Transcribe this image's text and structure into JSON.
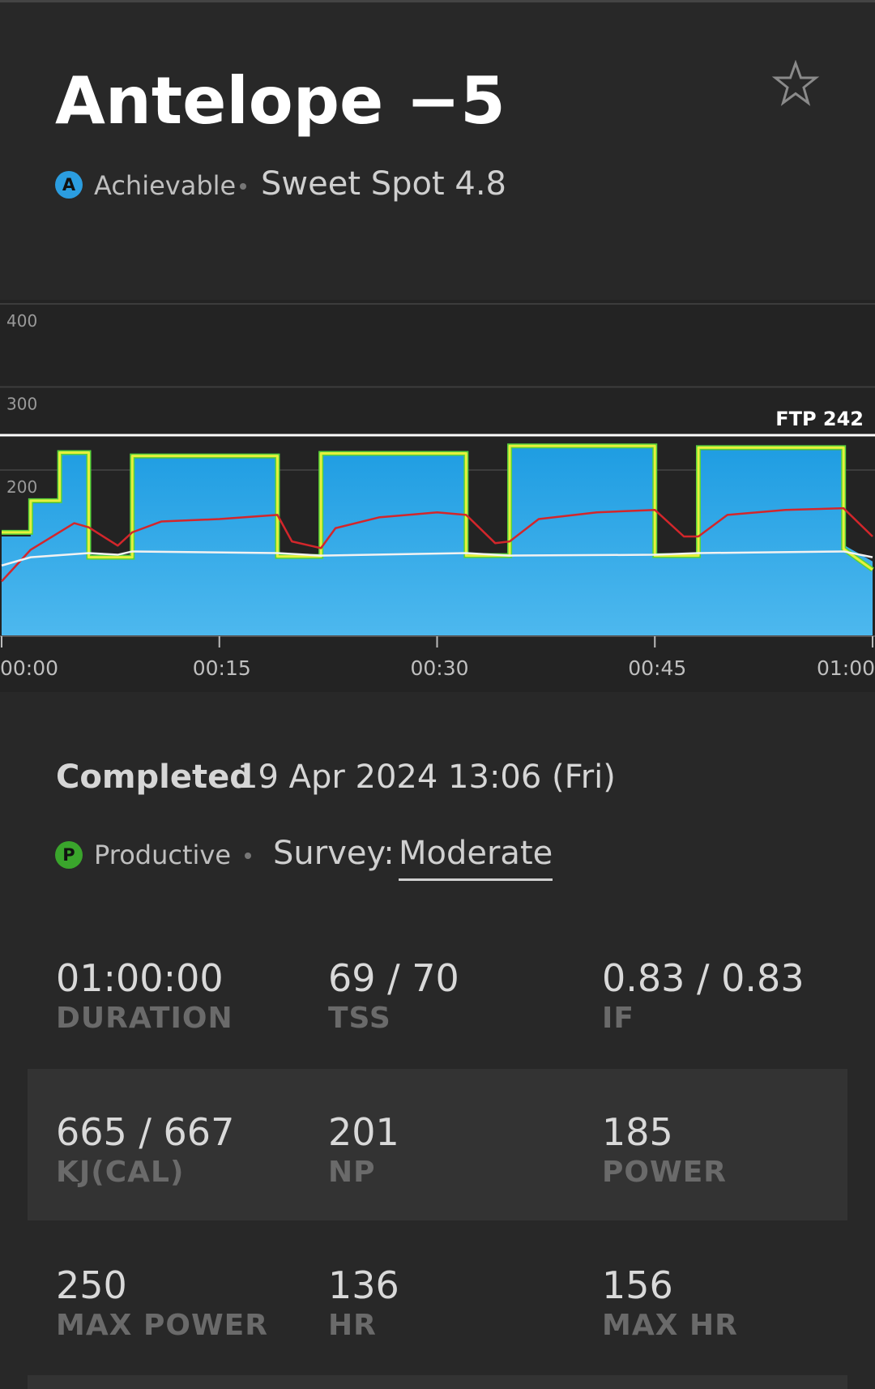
{
  "header": {
    "title": "Antelope −5",
    "badge": "A",
    "level": "Achievable",
    "zone": "Sweet Spot 4.8"
  },
  "chart_data": {
    "type": "line",
    "xlim": [
      0,
      60
    ],
    "xticks": [
      {
        "value": 0,
        "label": "00:00"
      },
      {
        "value": 15,
        "label": "00:15"
      },
      {
        "value": 30,
        "label": "00:30"
      },
      {
        "value": 45,
        "label": "00:45"
      },
      {
        "value": 60,
        "label": "01:00"
      }
    ],
    "ylim": [
      0,
      400
    ],
    "yticks": [
      200,
      300,
      400
    ],
    "grid": true,
    "ftp": {
      "value": 242,
      "label": "FTP 242"
    },
    "series": [
      {
        "kind": "area",
        "color": "#1f9de2",
        "x": [
          0,
          2,
          2,
          4,
          4,
          6,
          6,
          9,
          9,
          19,
          19,
          22,
          22,
          32,
          32,
          35,
          35,
          45,
          45,
          48,
          48,
          58,
          58,
          60
        ],
        "values": [
          120,
          120,
          160,
          160,
          218,
          218,
          98,
          98,
          214,
          214,
          98,
          98,
          218,
          218,
          98,
          98,
          227,
          227,
          98,
          98,
          224,
          224,
          110,
          90
        ]
      },
      {
        "kind": "line",
        "color": "#e6f03c",
        "x": [
          0,
          2,
          2,
          4,
          4,
          6,
          6,
          9,
          9,
          19,
          19,
          22,
          22,
          32,
          32,
          35,
          35,
          45,
          45,
          48,
          48,
          58,
          58,
          60
        ],
        "values": [
          125,
          125,
          163,
          163,
          221,
          221,
          95,
          95,
          217,
          217,
          96,
          96,
          220,
          220,
          97,
          97,
          229,
          229,
          97,
          97,
          227,
          227,
          105,
          80
        ]
      },
      {
        "kind": "line",
        "color": "#d3262b",
        "x": [
          0,
          2,
          5,
          6,
          8,
          9,
          11,
          15,
          19,
          20,
          22,
          23,
          26,
          30,
          32,
          34,
          35,
          37,
          41,
          45,
          47,
          48,
          50,
          54,
          58,
          60
        ],
        "values": [
          66,
          104,
          136,
          131,
          109,
          125,
          138,
          141,
          146,
          114,
          106,
          130,
          143,
          149,
          146,
          112,
          114,
          141,
          149,
          152,
          120,
          120,
          146,
          152,
          154,
          120
        ]
      },
      {
        "kind": "line",
        "color": "#f2f2f2",
        "x": [
          0,
          2,
          6,
          8,
          9,
          19,
          22,
          32,
          35,
          45,
          48,
          58,
          60
        ],
        "values": [
          85,
          95,
          100,
          98,
          102,
          100,
          97,
          100,
          97,
          98,
          100,
          102,
          95
        ]
      }
    ]
  },
  "completion": {
    "label": "Completed",
    "date": "19 Apr 2024 13:06 (Fri)",
    "badge": "P",
    "result": "Productive",
    "survey_label": "Survey:",
    "survey_value": "Moderate"
  },
  "stats": [
    {
      "value": "01:00:00",
      "label": "DURATION"
    },
    {
      "value": "69 / 70",
      "label": "TSS"
    },
    {
      "value": "0.83 / 0.83",
      "label": "IF"
    },
    {
      "value": "665 / 667",
      "label": "KJ(CAL)"
    },
    {
      "value": "201",
      "label": "NP"
    },
    {
      "value": "185",
      "label": "POWER"
    },
    {
      "value": "250",
      "label": "MAX POWER"
    },
    {
      "value": "136",
      "label": "HR"
    },
    {
      "value": "156",
      "label": "MAX HR"
    }
  ]
}
